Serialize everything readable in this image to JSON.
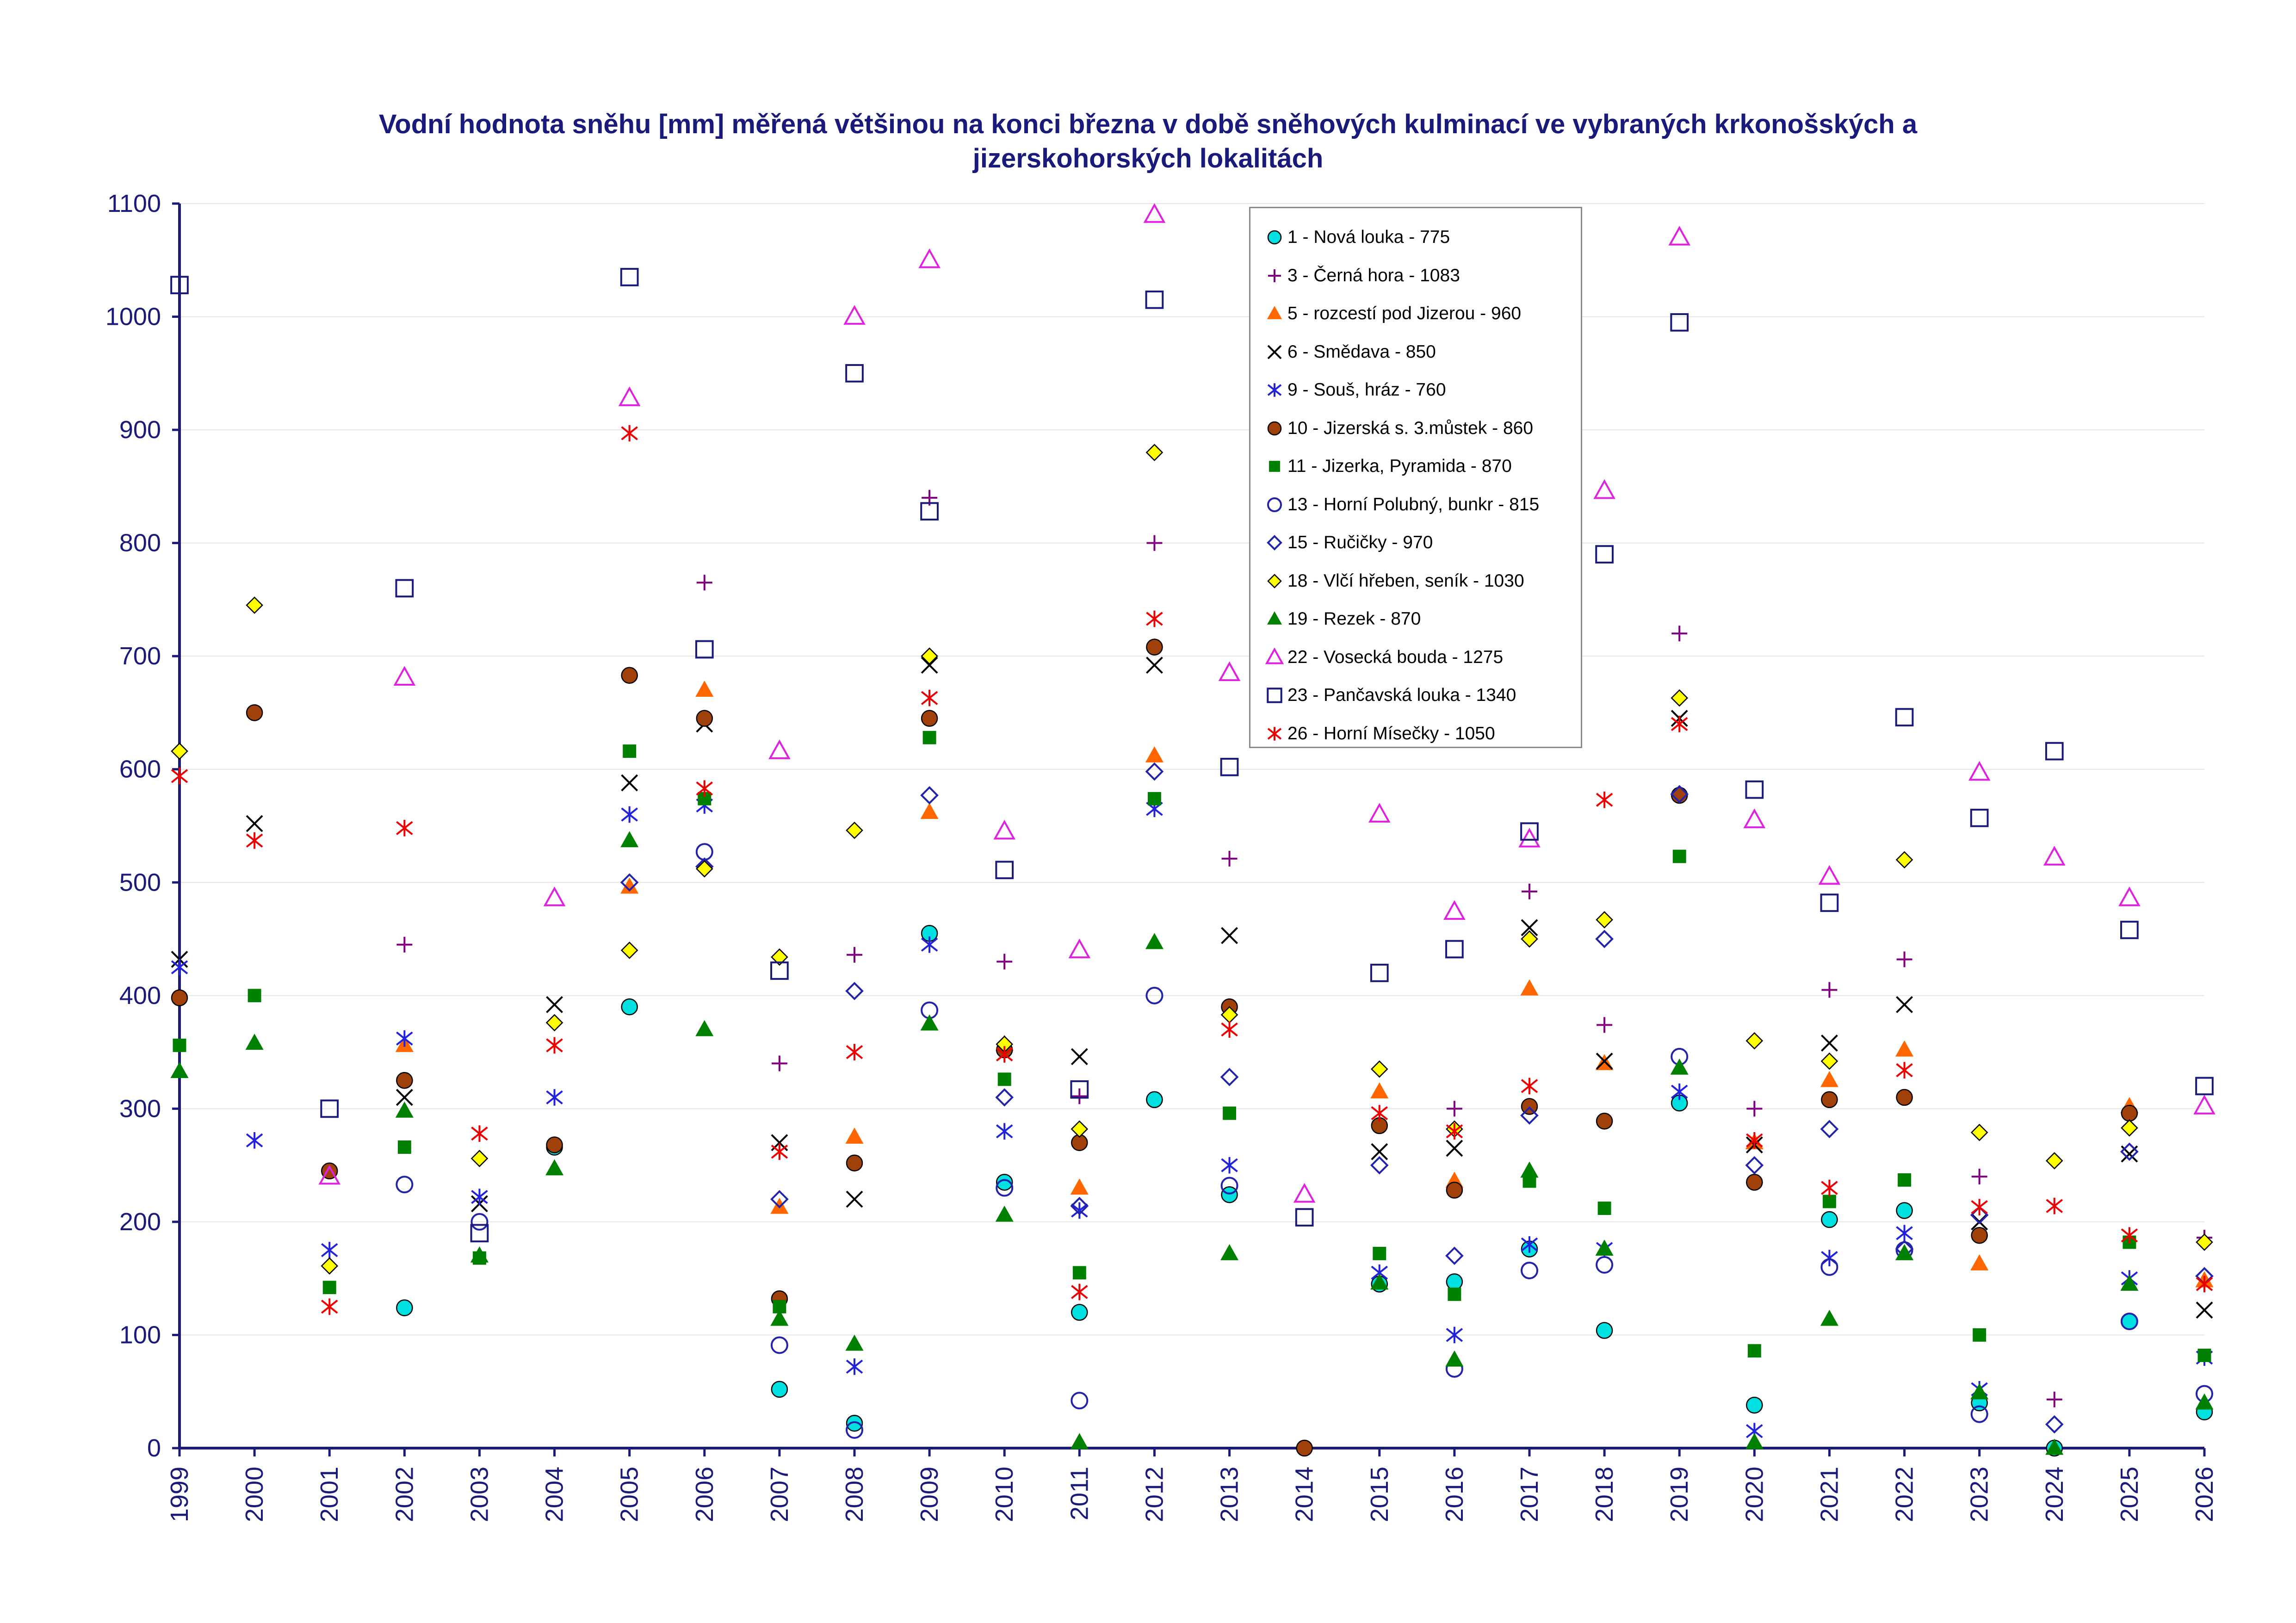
{
  "title_lines": [
    "Vodní hodnota sněhu [mm] měřená většinou na konci března v době sněhových kulminací ve vybraných krkonošských a",
    "jizerskohorských lokalitách"
  ],
  "chart_data": {
    "type": "scatter",
    "title": "Vodní hodnota sněhu [mm] měřená většinou na konci března v době sněhových kulminací ve vybraných krkonošských a jizerskohorských lokalitách",
    "xlabel": "",
    "ylabel": "",
    "ylim": [
      0,
      1100
    ],
    "yticks": [
      0,
      100,
      200,
      300,
      400,
      500,
      600,
      700,
      800,
      900,
      1000,
      1100
    ],
    "grid": true,
    "legend_position": "top-center",
    "categories": [
      "1999",
      "2000",
      "2001",
      "2002",
      "2003",
      "2004",
      "2005",
      "2006",
      "2007",
      "2008",
      "2009",
      "2010",
      "2011",
      "2012",
      "2013",
      "2014",
      "2015",
      "2016",
      "2017",
      "2018",
      "2019",
      "2020",
      "2021",
      "2022",
      "2023",
      "2024",
      "2025",
      "2026"
    ],
    "series": [
      {
        "name": "1 - Nová louka - 775",
        "marker": "circle-filled",
        "color": "#00e0e0",
        "values": [
          null,
          null,
          null,
          124,
          null,
          266,
          390,
          null,
          52,
          22,
          455,
          235,
          120,
          308,
          224,
          null,
          145,
          147,
          176,
          104,
          305,
          38,
          202,
          210,
          40,
          0,
          112,
          32
        ]
      },
      {
        "name": "3 - Černá hora - 1083",
        "marker": "plus",
        "color": "#800080",
        "values": [
          null,
          null,
          null,
          445,
          null,
          null,
          683,
          765,
          340,
          436,
          840,
          430,
          311,
          800,
          521,
          null,
          null,
          300,
          492,
          374,
          720,
          300,
          405,
          432,
          240,
          43,
          null,
          186
        ]
      },
      {
        "name": "5 - rozcestí pod Jizerou - 960",
        "marker": "triangle-filled",
        "color": "#ff6600",
        "values": [
          null,
          null,
          null,
          356,
          null,
          null,
          496,
          670,
          213,
          275,
          562,
          357,
          230,
          612,
          null,
          null,
          315,
          236,
          406,
          340,
          null,
          270,
          325,
          352,
          163,
          null,
          302,
          148
        ]
      },
      {
        "name": "6 - Smědava - 850",
        "marker": "x",
        "color": "#000000",
        "values": [
          432,
          552,
          null,
          310,
          216,
          392,
          588,
          640,
          270,
          220,
          692,
          null,
          346,
          692,
          453,
          null,
          262,
          265,
          460,
          342,
          645,
          268,
          358,
          392,
          200,
          null,
          260,
          122
        ]
      },
      {
        "name": "9 - Souš, hráz - 760",
        "marker": "asterisk",
        "color": "#2222dd",
        "values": [
          425,
          272,
          175,
          362,
          222,
          310,
          560,
          568,
          null,
          72,
          445,
          280,
          210,
          565,
          250,
          null,
          155,
          100,
          180,
          176,
          315,
          15,
          168,
          190,
          52,
          null,
          150,
          80
        ]
      },
      {
        "name": "10 - Jizerská s. 3.můstek - 860",
        "marker": "circle-filled",
        "color": "#a0400a",
        "values": [
          398,
          650,
          245,
          325,
          null,
          268,
          683,
          645,
          132,
          252,
          645,
          352,
          270,
          708,
          390,
          0,
          285,
          228,
          302,
          289,
          577,
          235,
          308,
          310,
          188,
          null,
          296,
          null
        ]
      },
      {
        "name": "11 - Jizerka, Pyramida - 870",
        "marker": "square-filled",
        "color": "#008000",
        "values": [
          356,
          400,
          142,
          266,
          168,
          null,
          616,
          574,
          125,
          null,
          628,
          326,
          155,
          574,
          296,
          null,
          172,
          136,
          236,
          212,
          523,
          86,
          218,
          237,
          100,
          null,
          182,
          82
        ]
      },
      {
        "name": "13 - Horní Polubný, bunkr - 815",
        "marker": "circle-open",
        "color": "#2222aa",
        "values": [
          null,
          null,
          null,
          233,
          200,
          null,
          null,
          527,
          91,
          16,
          387,
          230,
          42,
          400,
          232,
          null,
          null,
          70,
          157,
          162,
          346,
          null,
          160,
          175,
          30,
          null,
          112,
          48
        ]
      },
      {
        "name": "15 - Ručičky - 970",
        "marker": "diamond-open",
        "color": "#2222aa",
        "values": [
          null,
          null,
          null,
          null,
          null,
          null,
          500,
          514,
          220,
          404,
          577,
          310,
          214,
          598,
          328,
          null,
          250,
          170,
          294,
          450,
          578,
          250,
          282,
          176,
          206,
          21,
          262,
          152
        ]
      },
      {
        "name": "18 - Vlčí hřeben, seník - 1030",
        "marker": "diamond-filled",
        "color": "#ffff00",
        "values": [
          616,
          745,
          161,
          null,
          256,
          376,
          440,
          512,
          434,
          546,
          700,
          357,
          282,
          880,
          383,
          null,
          335,
          282,
          450,
          467,
          663,
          360,
          342,
          520,
          279,
          254,
          283,
          182
        ]
      },
      {
        "name": "19 - Rezek - 870",
        "marker": "triangle-filled",
        "color": "#008000",
        "values": [
          333,
          358,
          null,
          298,
          170,
          247,
          537,
          370,
          114,
          92,
          375,
          206,
          5,
          447,
          172,
          null,
          146,
          78,
          245,
          176,
          336,
          5,
          114,
          172,
          49,
          0,
          145,
          40
        ]
      },
      {
        "name": "22 - Vosecká bouda - 1275",
        "marker": "triangle-open",
        "color": "#e020e0",
        "values": [
          null,
          null,
          240,
          681,
          null,
          486,
          928,
          null,
          616,
          1000,
          1050,
          545,
          440,
          1090,
          685,
          224,
          560,
          474,
          538,
          846,
          1070,
          555,
          505,
          null,
          597,
          522,
          486,
          302
        ]
      },
      {
        "name": "23 - Pančavská louka - 1340",
        "marker": "square-open",
        "color": "#1a1a7a",
        "values": [
          1028,
          null,
          300,
          760,
          190,
          null,
          1035,
          706,
          422,
          950,
          828,
          511,
          317,
          1015,
          602,
          204,
          420,
          441,
          545,
          790,
          995,
          582,
          482,
          646,
          557,
          616,
          458,
          320
        ]
      },
      {
        "name": "26 - Horní Mísečky - 1050",
        "marker": "asterisk",
        "color": "#ee0000",
        "values": [
          594,
          537,
          125,
          548,
          278,
          356,
          897,
          583,
          262,
          350,
          663,
          348,
          138,
          733,
          370,
          null,
          296,
          280,
          320,
          573,
          640,
          272,
          230,
          334,
          213,
          214,
          188,
          145
        ]
      }
    ]
  }
}
